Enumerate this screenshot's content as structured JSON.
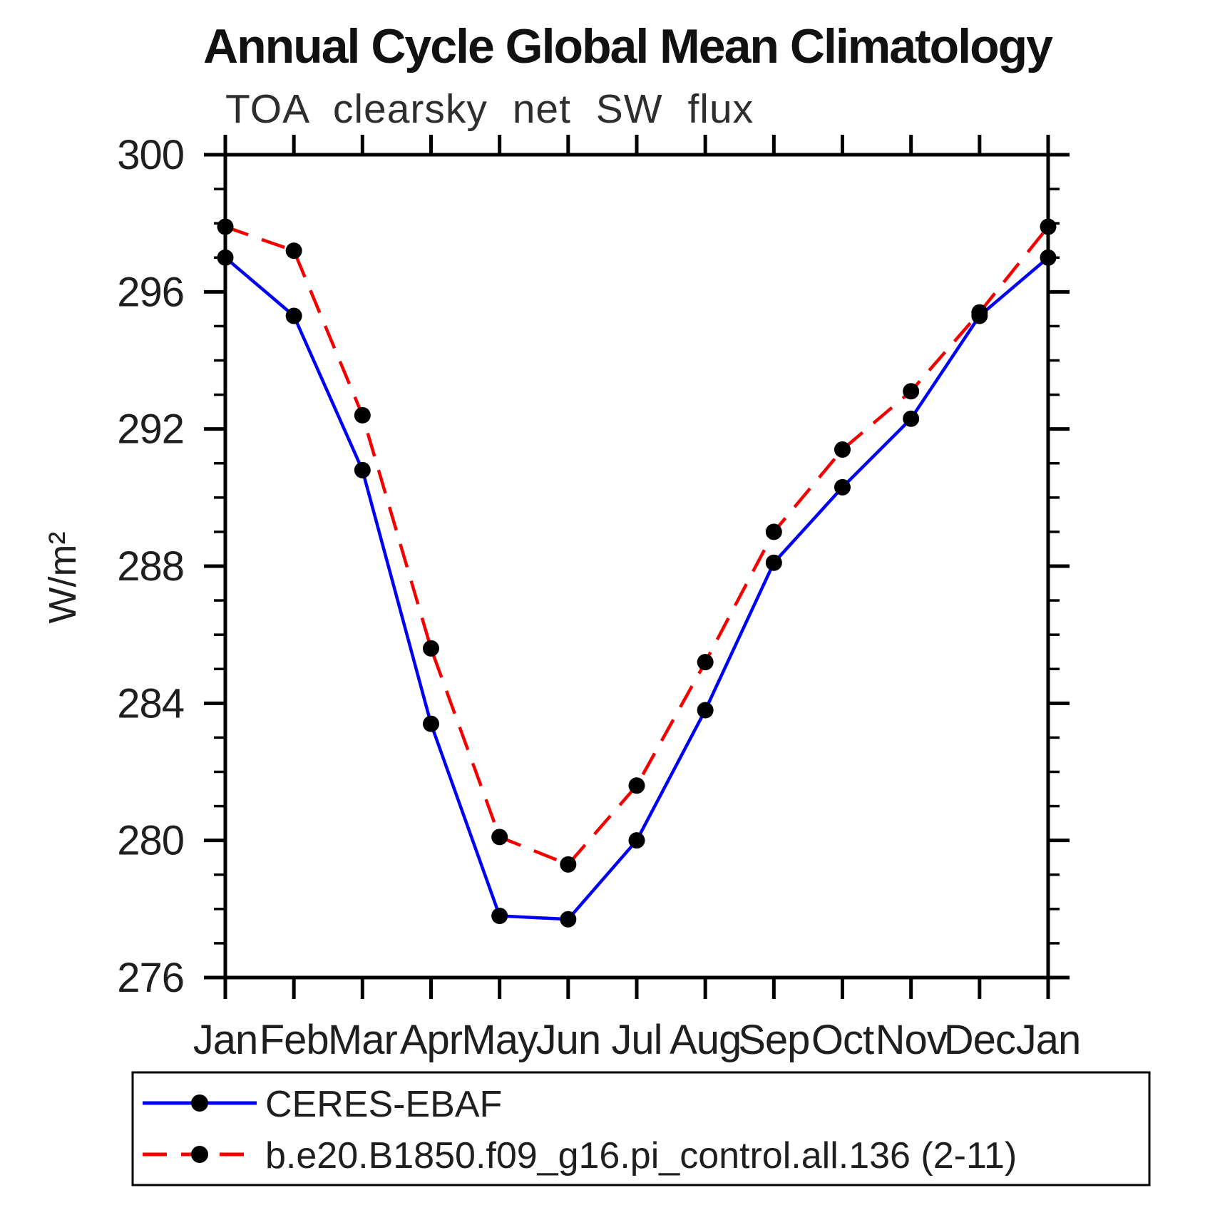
{
  "title": "Annual Cycle Global Mean Climatology",
  "subtitle": "TOA clearsky net SW flux",
  "ylabel": "W/m²",
  "colors": {
    "obs_line": "#0000f5",
    "model_line": "#f50000",
    "marker": "#000000",
    "axis": "#000000"
  },
  "chart_data": {
    "type": "line",
    "categories": [
      "Jan",
      "Feb",
      "Mar",
      "Apr",
      "May",
      "Jun",
      "Jul",
      "Aug",
      "Sep",
      "Oct",
      "Nov",
      "Dec",
      "Jan"
    ],
    "series": [
      {
        "name": "CERES-EBAF",
        "style": "solid",
        "color_key": "obs_line",
        "values": [
          297.0,
          295.3,
          290.8,
          283.4,
          277.8,
          277.7,
          280.0,
          283.8,
          288.1,
          290.3,
          292.3,
          295.3,
          297.0
        ]
      },
      {
        "name": "b.e20.B1850.f09_g16.pi_control.all.136 (2-11)",
        "style": "dashed",
        "color_key": "model_line",
        "values": [
          297.9,
          297.2,
          292.4,
          285.6,
          280.1,
          279.3,
          281.6,
          285.2,
          289.0,
          291.4,
          293.1,
          295.4,
          297.9
        ]
      }
    ],
    "ylim": [
      276,
      300
    ],
    "y_major_step": 4,
    "y_minor_step": 1,
    "x_tick_every_category": true,
    "grid": false,
    "legend_position": "bottom-left-box",
    "marker": "filled-circle"
  }
}
